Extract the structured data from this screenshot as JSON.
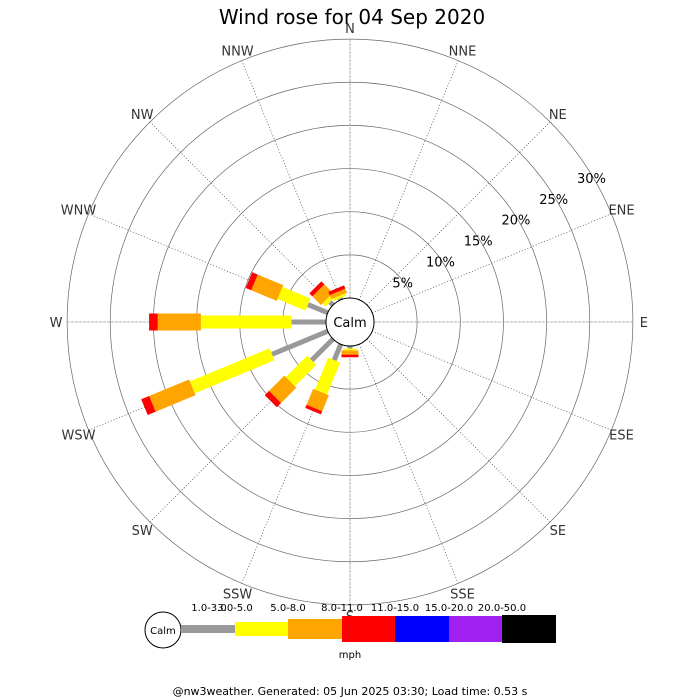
{
  "chart_data": {
    "type": "wind-rose",
    "title": "Wind rose for 04 Sep 2020",
    "center_label": "Calm",
    "directions": [
      "N",
      "NNE",
      "NE",
      "ENE",
      "E",
      "ESE",
      "SE",
      "SSE",
      "S",
      "SSW",
      "SW",
      "WSW",
      "W",
      "WNW",
      "NW",
      "NNW"
    ],
    "ring_percents": [
      5,
      10,
      15,
      20,
      25,
      30
    ],
    "ring_labels": [
      "5%",
      "10%",
      "15%",
      "20%",
      "25%",
      "30%"
    ],
    "speed_bins": [
      {
        "label": "1.0-3.0",
        "color": "#999999"
      },
      {
        "label": "3.0-5.0",
        "color": "#ffff00"
      },
      {
        "label": "5.0-8.0",
        "color": "#ffa500"
      },
      {
        "label": "8.0-11.0",
        "color": "#ff0000"
      },
      {
        "label": "11.0-15.0",
        "color": "#0000ff"
      },
      {
        "label": "15.0-20.0",
        "color": "#a020f0"
      },
      {
        "label": "20.0-50.0",
        "color": "#000000"
      }
    ],
    "units": "mph",
    "frequencies_percent": {
      "N": [
        0,
        0,
        0,
        0,
        0,
        0,
        0
      ],
      "NNE": [
        0,
        0,
        0,
        0,
        0,
        0,
        0
      ],
      "NE": [
        0,
        0,
        0,
        0,
        0,
        0,
        0
      ],
      "ENE": [
        0,
        0,
        0,
        0,
        0,
        0,
        0
      ],
      "E": [
        0,
        0,
        0,
        0,
        0,
        0,
        0
      ],
      "ESE": [
        0,
        0,
        0,
        0,
        0,
        0,
        0
      ],
      "SE": [
        0,
        0,
        0,
        0,
        0,
        0,
        0
      ],
      "SSE": [
        0,
        0,
        0,
        0,
        0,
        0,
        0
      ],
      "S": [
        0.3,
        0.2,
        0.5,
        0.3,
        0,
        0,
        0
      ],
      "SSW": [
        2.0,
        4.0,
        2.0,
        0.4,
        0,
        0,
        0
      ],
      "SW": [
        3.5,
        3.5,
        2.5,
        0.7,
        0,
        0,
        0
      ],
      "WSW": [
        7.0,
        10.0,
        5.0,
        1.0,
        0,
        0,
        0
      ],
      "W": [
        4.0,
        10.5,
        5.0,
        1.0,
        0,
        0,
        0
      ],
      "WNW": [
        2.5,
        3.5,
        3.2,
        0.7,
        0,
        0,
        0
      ],
      "NW": [
        0.5,
        0.5,
        1.4,
        0.5,
        0,
        0,
        0
      ],
      "NNW": [
        0.2,
        0.3,
        0.5,
        0.4,
        0,
        0,
        0
      ]
    }
  },
  "footer": "@nw3weather. Generated: 05 Jun 2025 03:30; Load time: 0.53 s"
}
